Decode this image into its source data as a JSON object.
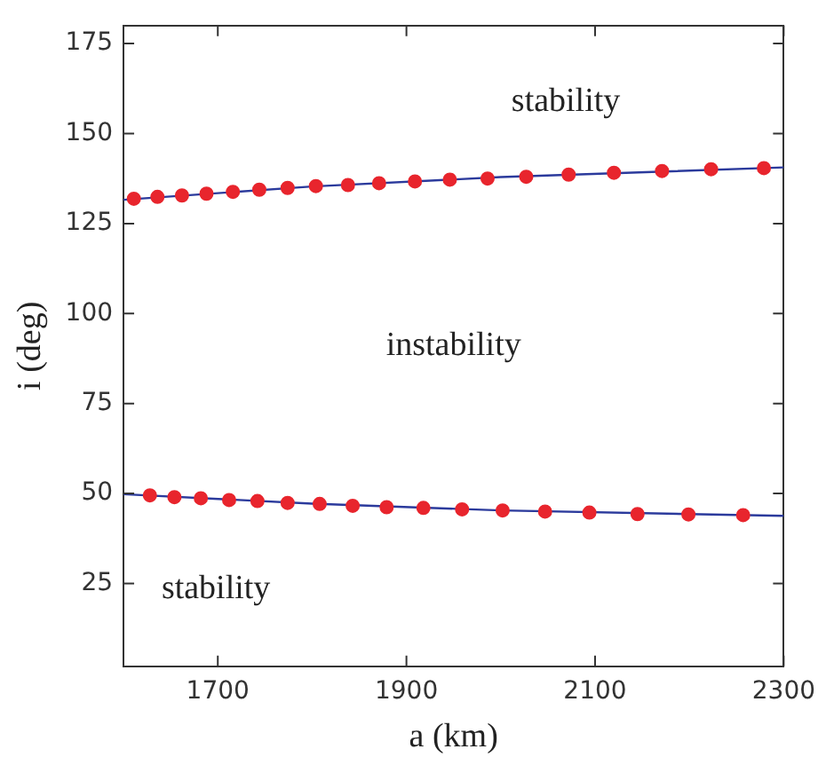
{
  "chart_data": {
    "type": "scatter",
    "xlabel": "a (km)",
    "ylabel": "i (deg)",
    "xlim": [
      1600,
      2300
    ],
    "xticks": [
      1700,
      1900,
      2100,
      2300
    ],
    "ylim": [
      2,
      180
    ],
    "yticks": [
      25,
      50,
      75,
      100,
      125,
      150,
      175
    ],
    "grid": false,
    "legend": false,
    "marker": "circle",
    "series": [
      {
        "type": "line",
        "marker": "none",
        "color": "#2b3a9c",
        "x": [
          1600,
          1800,
          2000,
          2300
        ],
        "values": [
          131.6,
          135.3,
          137.9,
          140.6
        ]
      },
      {
        "type": "line",
        "marker": "none",
        "color": "#2b3a9c",
        "x": [
          1600,
          1800,
          2000,
          2300
        ],
        "values": [
          49.8,
          47.2,
          45.3,
          43.8
        ]
      },
      {
        "color": "#e8252d",
        "x": [
          1611,
          1636,
          1662,
          1688,
          1716,
          1744,
          1774,
          1804,
          1838,
          1871,
          1909,
          1946,
          1986,
          2027,
          2072,
          2120,
          2171,
          2223,
          2279
        ],
        "values": [
          131.9,
          132.4,
          132.8,
          133.3,
          133.8,
          134.4,
          134.9,
          135.4,
          135.7,
          136.2,
          136.7,
          137.2,
          137.5,
          138,
          138.6,
          139.1,
          139.6,
          140.1,
          140.4
        ]
      },
      {
        "color": "#e8252d",
        "x": [
          1628,
          1654,
          1682,
          1712,
          1742,
          1774,
          1808,
          1843,
          1879,
          1918,
          1959,
          2002,
          2047,
          2094,
          2145,
          2199,
          2257
        ],
        "values": [
          49.5,
          49,
          48.7,
          48.2,
          47.9,
          47.4,
          47.1,
          46.6,
          46.2,
          46,
          45.6,
          45.3,
          45,
          44.7,
          44.3,
          44.2,
          44
        ]
      }
    ],
    "annotations": [
      "stability",
      "instability",
      "stability"
    ]
  }
}
